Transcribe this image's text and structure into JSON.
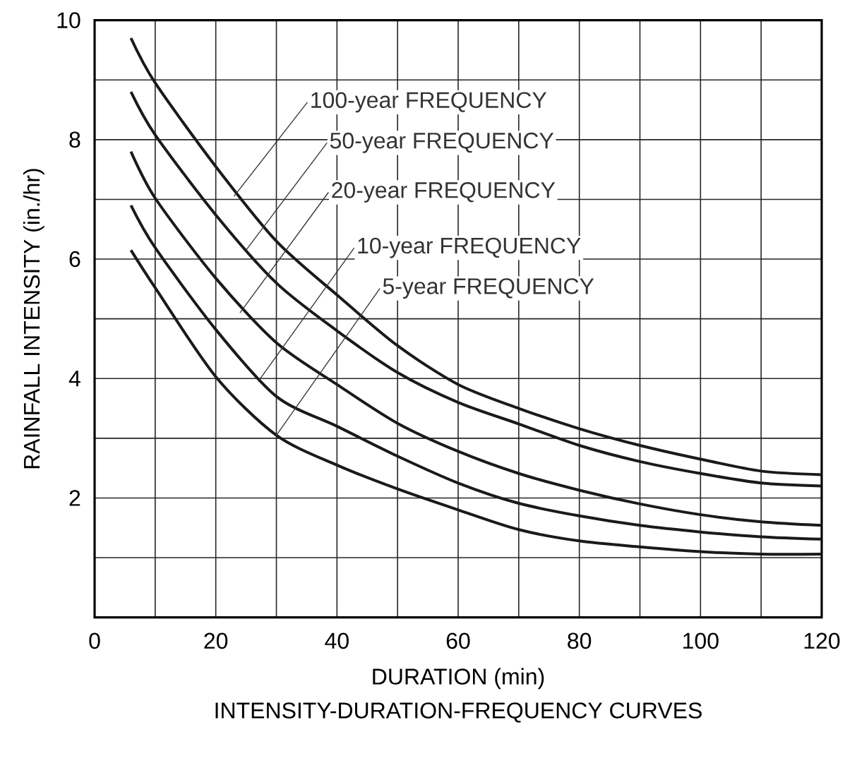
{
  "chart_data": {
    "type": "line",
    "title": "INTENSITY-DURATION-FREQUENCY CURVES",
    "xlabel": "DURATION (min)",
    "ylabel": "RAINFALL INTENSITY (in./hr)",
    "x": [
      6,
      10,
      20,
      30,
      40,
      50,
      60,
      70,
      80,
      90,
      100,
      110,
      120
    ],
    "series": [
      {
        "color": "#1a1a1a",
        "values": [
          9.7,
          8.95,
          7.55,
          6.3,
          5.4,
          4.55,
          3.9,
          3.5,
          3.16,
          2.88,
          2.65,
          2.45,
          2.39
        ]
      },
      {
        "color": "#1a1a1a",
        "values": [
          8.8,
          8.08,
          6.74,
          5.6,
          4.8,
          4.1,
          3.6,
          3.24,
          2.88,
          2.61,
          2.41,
          2.25,
          2.2
        ]
      },
      {
        "color": "#1a1a1a",
        "values": [
          7.8,
          7.02,
          5.68,
          4.6,
          3.9,
          3.25,
          2.78,
          2.41,
          2.13,
          1.9,
          1.72,
          1.6,
          1.54
        ]
      },
      {
        "color": "#1a1a1a",
        "values": [
          6.9,
          6.19,
          4.82,
          3.7,
          3.2,
          2.7,
          2.25,
          1.91,
          1.7,
          1.54,
          1.43,
          1.35,
          1.31
        ]
      },
      {
        "color": "#1a1a1a",
        "values": [
          6.15,
          5.52,
          4.03,
          3.05,
          2.55,
          2.15,
          1.8,
          1.47,
          1.28,
          1.18,
          1.1,
          1.06,
          1.06
        ]
      }
    ],
    "annotations": [
      {
        "text": "100-year FREQUENCY",
        "x": 23,
        "y": 7.05
      },
      {
        "text": "50-year FREQUENCY",
        "x": 25,
        "y": 6.15
      },
      {
        "text": "20-year FREQUENCY",
        "x": 24,
        "y": 5.1
      },
      {
        "text": "10-year FREQUENCY",
        "x": 27,
        "y": 3.95
      },
      {
        "text": "5-year FREQUENCY",
        "x": 30,
        "y": 3.05
      }
    ],
    "xlim": [
      0,
      120
    ],
    "ylim": [
      0,
      10
    ],
    "xticks": [
      0,
      {
        "value": 10,
        "label": null
      },
      20,
      {
        "value": 30,
        "label": null
      },
      40,
      {
        "value": 50,
        "label": null
      },
      60,
      {
        "value": 70,
        "label": null
      },
      80,
      {
        "value": 90,
        "label": null
      },
      100,
      {
        "value": 110,
        "label": null
      },
      120
    ],
    "yticks": [
      {
        "value": 1,
        "label": null
      },
      2,
      {
        "value": 3,
        "label": null
      },
      4,
      {
        "value": 5,
        "label": null
      },
      6,
      {
        "value": 7,
        "label": null
      },
      8,
      {
        "value": 9,
        "label": null
      },
      10
    ],
    "grid": true
  }
}
